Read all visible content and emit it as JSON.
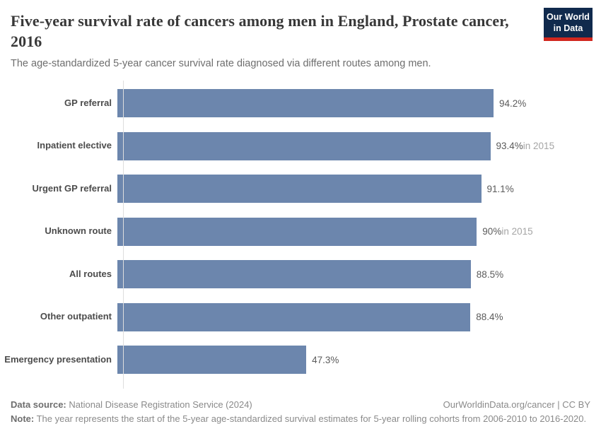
{
  "header": {
    "title": "Five-year survival rate of cancers among men in England, Prostate cancer, 2016",
    "subtitle": "The age-standardized 5-year cancer survival rate diagnosed via different routes among men.",
    "logo_line1": "Our World",
    "logo_line2": "in Data"
  },
  "chart_data": {
    "type": "bar",
    "orientation": "horizontal",
    "title": "Five-year survival rate of cancers among men in England, Prostate cancer, 2016",
    "categories": [
      "GP referral",
      "Inpatient elective",
      "Urgent GP referral",
      "Unknown route",
      "All routes",
      "Other outpatient",
      "Emergency presentation"
    ],
    "values": [
      94.2,
      93.4,
      91.1,
      90,
      88.5,
      88.4,
      47.3
    ],
    "unit": "%",
    "xlim": [
      0,
      100
    ],
    "grid": false,
    "legend": false,
    "bar_color": "#6c86ad",
    "axis_color": "#dedede",
    "bars": [
      {
        "label": "GP referral",
        "value": 94.2,
        "display": "94.2%",
        "suffix": ""
      },
      {
        "label": "Inpatient elective",
        "value": 93.4,
        "display": "93.4%",
        "suffix": "in 2015"
      },
      {
        "label": "Urgent GP referral",
        "value": 91.1,
        "display": "91.1%",
        "suffix": ""
      },
      {
        "label": "Unknown route",
        "value": 90,
        "display": "90%",
        "suffix": "in 2015"
      },
      {
        "label": "All routes",
        "value": 88.5,
        "display": "88.5%",
        "suffix": ""
      },
      {
        "label": "Other outpatient",
        "value": 88.4,
        "display": "88.4%",
        "suffix": ""
      },
      {
        "label": "Emergency presentation",
        "value": 47.3,
        "display": "47.3%",
        "suffix": ""
      }
    ]
  },
  "footer": {
    "source_label": "Data source:",
    "source_text": " National Disease Registration Service (2024)",
    "link_text": "OurWorldinData.org/cancer | CC BY",
    "note_label": "Note:",
    "note_text": " The year represents the start of the 5-year age-standardized survival estimates for 5-year rolling cohorts from 2006-2010 to 2016-2020."
  }
}
